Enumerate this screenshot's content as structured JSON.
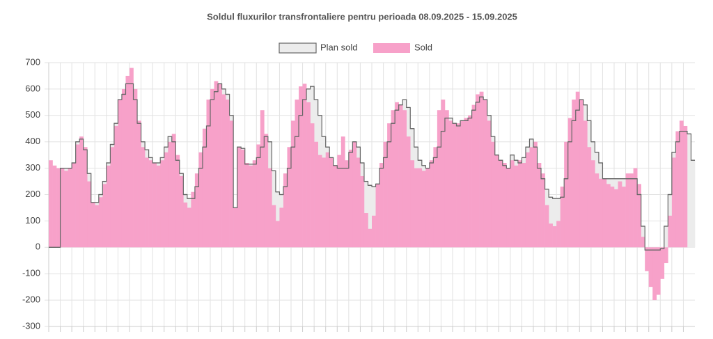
{
  "chart_data": {
    "type": "bar-step",
    "title": "Soldul fluxurilor transfrontaliere  pentru perioada 08.09.2025 - 15.09.2025",
    "categories": [
      null,
      null,
      null,
      null,
      null,
      null,
      null,
      null,
      null,
      null,
      null,
      null,
      null,
      null,
      null,
      null,
      null,
      null,
      null,
      null,
      null,
      null,
      null,
      null,
      null,
      null,
      null,
      null,
      null,
      null,
      null,
      null,
      null,
      null,
      null,
      null,
      null,
      null,
      null,
      null,
      null,
      null,
      null,
      null,
      null,
      null,
      null,
      null,
      null,
      null,
      null,
      null,
      null,
      null,
      null,
      null,
      null,
      null,
      null,
      null,
      null,
      null,
      null,
      null,
      null,
      null,
      null,
      null,
      null,
      null,
      null,
      null,
      null,
      null,
      null,
      null,
      null,
      null,
      null,
      null,
      null,
      null,
      null,
      null,
      null,
      null,
      null,
      null,
      null,
      null,
      null,
      null,
      null,
      null,
      null,
      null,
      null,
      null,
      null,
      null,
      null,
      null,
      null,
      null,
      null,
      null,
      null,
      null,
      null,
      null,
      null,
      null,
      null,
      null,
      null,
      null,
      null,
      null,
      null,
      null,
      null,
      null,
      null,
      null,
      null,
      null,
      null,
      null,
      null,
      null,
      null,
      null,
      null,
      null,
      null,
      null,
      null,
      null,
      null,
      null,
      null,
      null,
      null,
      null,
      null,
      null,
      null,
      null,
      null,
      null,
      null,
      null,
      null,
      null,
      null,
      null,
      null,
      null,
      null,
      null,
      null,
      null,
      null,
      null,
      null,
      null,
      null,
      null
    ],
    "series": [
      {
        "name": "Plan sold",
        "color": "#666666",
        "fill": "#ececec",
        "values": [
          0,
          0,
          0,
          300,
          300,
          300,
          320,
          400,
          410,
          370,
          280,
          170,
          170,
          200,
          250,
          320,
          390,
          470,
          560,
          580,
          620,
          620,
          560,
          470,
          400,
          370,
          340,
          320,
          320,
          340,
          380,
          420,
          400,
          330,
          280,
          200,
          185,
          185,
          230,
          300,
          380,
          460,
          560,
          590,
          620,
          600,
          580,
          500,
          150,
          380,
          375,
          315,
          315,
          315,
          340,
          380,
          420,
          400,
          290,
          210,
          200,
          230,
          300,
          380,
          420,
          500,
          560,
          600,
          610,
          560,
          500,
          420,
          380,
          340,
          310,
          300,
          300,
          300,
          360,
          400,
          380,
          320,
          250,
          235,
          230,
          240,
          300,
          340,
          400,
          470,
          520,
          540,
          560,
          530,
          450,
          380,
          330,
          310,
          300,
          320,
          340,
          380,
          440,
          490,
          490,
          470,
          460,
          480,
          480,
          490,
          520,
          550,
          570,
          560,
          500,
          420,
          350,
          330,
          310,
          300,
          350,
          330,
          320,
          340,
          380,
          410,
          380,
          300,
          260,
          220,
          190,
          185,
          185,
          190,
          260,
          400,
          480,
          520,
          560,
          540,
          480,
          400,
          360,
          320,
          260,
          260,
          260,
          260,
          260,
          260,
          260,
          260,
          260,
          200,
          80,
          -10,
          -10,
          -10,
          -10,
          -5,
          80,
          200,
          360,
          400,
          440,
          440,
          430,
          330
        ]
      },
      {
        "name": "Sold",
        "color": "#f7a1c9",
        "values": [
          330,
          310,
          300,
          300,
          290,
          300,
          320,
          390,
          420,
          380,
          250,
          170,
          160,
          190,
          240,
          310,
          380,
          460,
          560,
          600,
          650,
          680,
          600,
          480,
          380,
          340,
          330,
          320,
          310,
          330,
          360,
          400,
          430,
          350,
          270,
          170,
          150,
          210,
          280,
          360,
          450,
          560,
          600,
          630,
          620,
          580,
          560,
          480,
          150,
          380,
          370,
          320,
          310,
          330,
          390,
          520,
          430,
          300,
          160,
          100,
          150,
          280,
          380,
          480,
          560,
          610,
          620,
          550,
          470,
          400,
          350,
          340,
          360,
          340,
          310,
          350,
          420,
          330,
          370,
          400,
          340,
          270,
          130,
          70,
          120,
          240,
          320,
          400,
          470,
          520,
          550,
          540,
          520,
          420,
          330,
          300,
          300,
          290,
          300,
          330,
          380,
          520,
          560,
          520,
          480,
          470,
          470,
          480,
          490,
          500,
          540,
          580,
          590,
          560,
          480,
          400,
          350,
          330,
          320,
          300,
          330,
          310,
          330,
          320,
          360,
          380,
          400,
          320,
          280,
          160,
          90,
          80,
          100,
          230,
          400,
          490,
          560,
          590,
          560,
          480,
          380,
          330,
          280,
          260,
          260,
          240,
          230,
          220,
          250,
          230,
          280,
          280,
          300,
          240,
          40,
          -90,
          -150,
          -200,
          -180,
          -120,
          -60,
          120,
          340,
          440,
          480,
          460,
          null,
          null
        ]
      }
    ],
    "ylim": [
      -300,
      700
    ],
    "yticks": [
      -300,
      -200,
      -100,
      0,
      100,
      200,
      300,
      400,
      500,
      600,
      700
    ],
    "grid": true
  }
}
